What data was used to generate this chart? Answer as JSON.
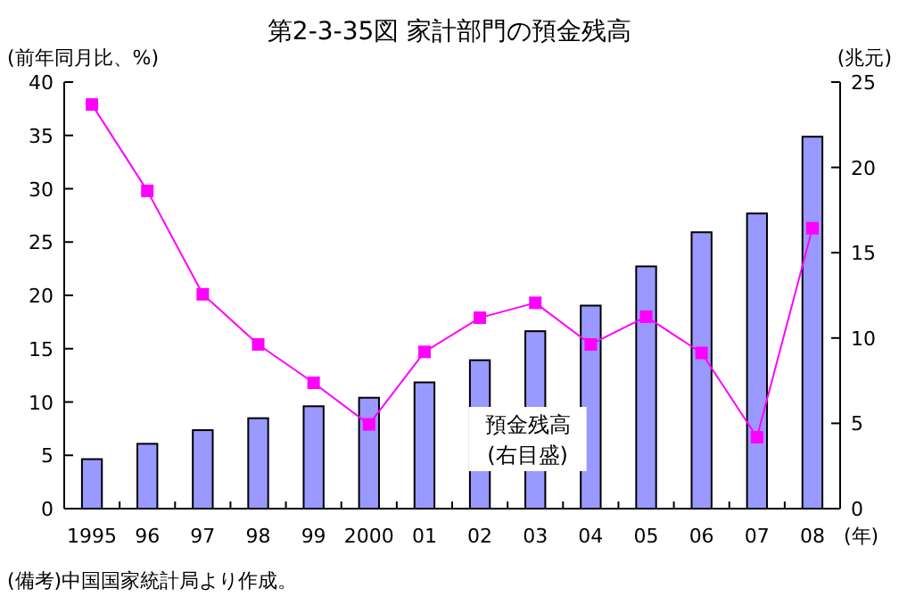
{
  "chart_data": {
    "type": "bar",
    "title": "第2-3-35図 家計部門の預金残高",
    "ylabel": "(前年同月比、%)",
    "y2label": "(兆元)",
    "xlabel": "(年)",
    "categories": [
      "1995",
      "96",
      "97",
      "98",
      "99",
      "2000",
      "01",
      "02",
      "03",
      "04",
      "05",
      "06",
      "07",
      "08"
    ],
    "series": [
      {
        "name": "預金残高",
        "axis": "y2",
        "color": "#9999ff",
        "values": [
          2.9,
          3.8,
          4.6,
          5.3,
          6.0,
          6.5,
          7.4,
          8.7,
          10.4,
          11.9,
          14.2,
          16.2,
          17.3,
          21.8
        ]
      },
      {
        "type": "line",
        "color": "#ff00ff",
        "marker": "square",
        "values": [
          37.9,
          29.8,
          20.1,
          15.4,
          11.8,
          7.9,
          14.7,
          17.9,
          19.3,
          15.4,
          18.0,
          14.6,
          6.7,
          26.3
        ]
      }
    ],
    "ylim": [
      0,
      40
    ],
    "yticks": [
      0,
      5,
      10,
      15,
      20,
      25,
      30,
      35,
      40
    ],
    "y2lim": [
      0,
      25
    ],
    "y2ticks": [
      0,
      5,
      10,
      15,
      20,
      25
    ],
    "annotations": [
      "(右目盛)",
      "(備考)中国国家統計局より作成。"
    ],
    "legend": false,
    "grid": false
  }
}
